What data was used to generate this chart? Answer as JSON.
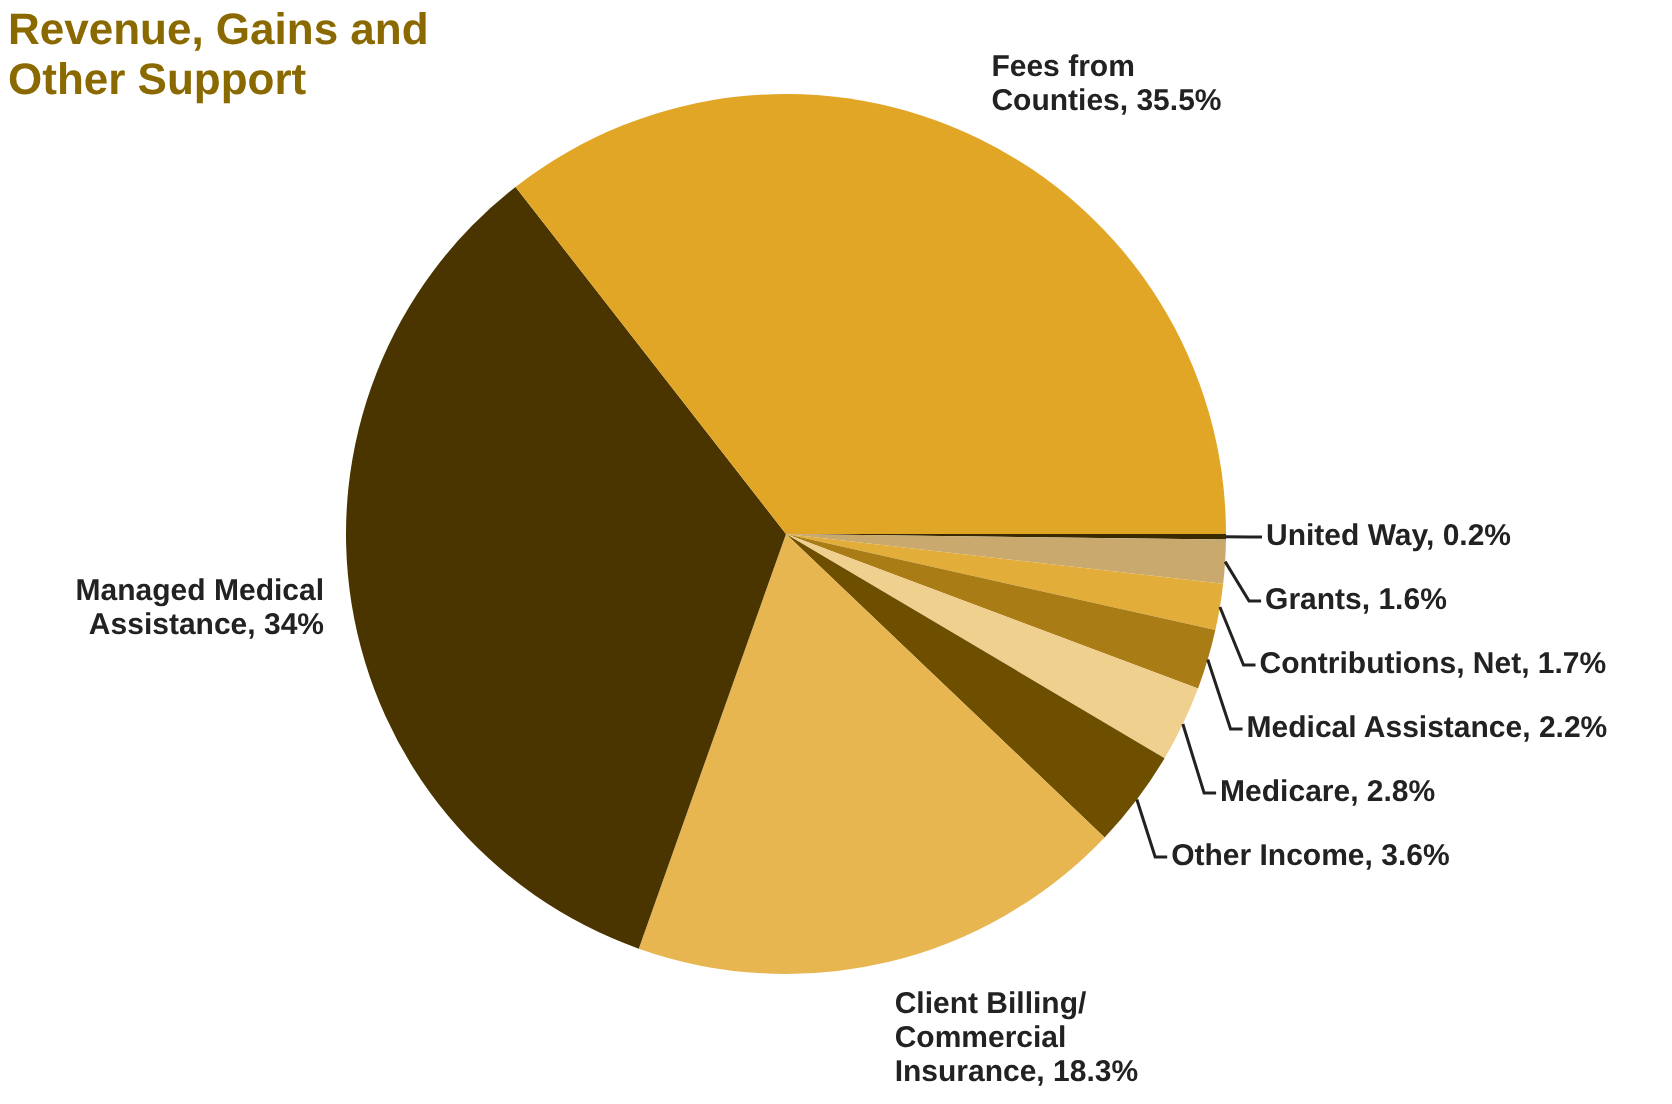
{
  "chart_data": {
    "type": "pie",
    "title": "Revenue, Gains and Other Support",
    "categories": [
      "United Way",
      "Grants",
      "Contributions, Net",
      "Medical Assistance",
      "Medicare",
      "Other Income",
      "Client Billing/ Commercial Insurance",
      "Managed Medical Assistance",
      "Fees from Counties"
    ],
    "values": [
      0.2,
      1.6,
      1.7,
      2.2,
      2.8,
      3.6,
      18.3,
      34,
      35.5
    ],
    "value_labels": [
      "0.2%",
      "1.6%",
      "1.7%",
      "2.2%",
      "2.8%",
      "3.6%",
      "18.3%",
      "34%",
      "35.5%"
    ],
    "colors": [
      "#3a2a00",
      "#c9a96e",
      "#e3ad3a",
      "#a97c16",
      "#f0d08e",
      "#6e4f00",
      "#e8b650",
      "#4a3500",
      "#e2a627"
    ],
    "legend": false
  }
}
